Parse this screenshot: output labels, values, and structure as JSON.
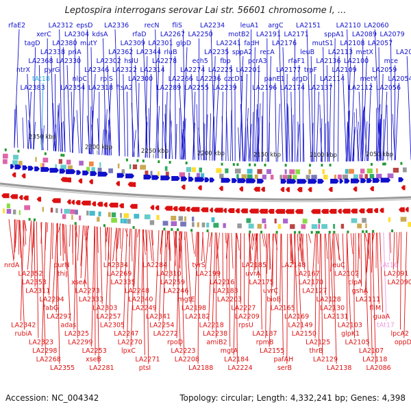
{
  "title": "Leptospira interrogans serovar Lai str. 56601 chromosome I, ...",
  "footer": {
    "accession": "Accession: NC_004342",
    "summary": "Topology: circular; Length: 4,332,241 bp; Genes: 4,398"
  },
  "colors": {
    "forward": "#1010cc",
    "reverse": "#dd1111",
    "rna_forward": "#22aadd",
    "rna_reverse": "#ee99dd",
    "axis": "#888888"
  },
  "kbp_ticks": [
    "2350 kbp",
    "2300 kbp",
    "2250 kbp",
    "2200 kbp",
    "2150 kbp",
    "2100 kbp",
    "2050 kbp"
  ],
  "forward_genes": [
    {
      "label": "rfaE2",
      "kind": "cds"
    },
    {
      "label": "ntrX",
      "kind": "cds"
    },
    {
      "label": "tagD",
      "kind": "cds"
    },
    {
      "label": "LA2383",
      "kind": "cds"
    },
    {
      "label": "LA2368",
      "kind": "cds"
    },
    {
      "label": "xerC",
      "kind": "cds"
    },
    {
      "label": "tAt18",
      "kind": "rna"
    },
    {
      "label": "LA2338",
      "kind": "cds"
    },
    {
      "label": "LA2312",
      "kind": "cds"
    },
    {
      "label": "pyrG",
      "kind": "cds"
    },
    {
      "label": "LA2380",
      "kind": "cds"
    },
    {
      "label": "LA2354",
      "kind": "cds"
    },
    {
      "label": "LA2330",
      "kind": "cds"
    },
    {
      "label": "LA2304",
      "kind": "cds"
    },
    {
      "label": "nlpC",
      "kind": "cds"
    },
    {
      "label": "priA",
      "kind": "cds"
    },
    {
      "label": "epsD",
      "kind": "cds"
    },
    {
      "label": "LA2346",
      "kind": "cds"
    },
    {
      "label": "mutY",
      "kind": "cds"
    },
    {
      "label": "LA2318",
      "kind": "cds"
    },
    {
      "label": "LA2302",
      "kind": "cds"
    },
    {
      "label": "kdsA",
      "kind": "cds"
    },
    {
      "label": "rplS",
      "kind": "cds"
    },
    {
      "label": "LA2362",
      "kind": "cds"
    },
    {
      "label": "LA2336",
      "kind": "cds"
    },
    {
      "label": "LA2322",
      "kind": "cds"
    },
    {
      "label": "LA2309",
      "kind": "cds"
    },
    {
      "label": "ftsA2",
      "kind": "cds"
    },
    {
      "label": "hslU",
      "kind": "cds"
    },
    {
      "label": "rfaD",
      "kind": "cds"
    },
    {
      "label": "LA2300",
      "kind": "cds"
    },
    {
      "label": "LA2344",
      "kind": "cds"
    },
    {
      "label": "recN",
      "kind": "cds"
    },
    {
      "label": "LA2314",
      "kind": "cds"
    },
    {
      "label": "LA2301",
      "kind": "cds"
    },
    {
      "label": "LA2289",
      "kind": "cds"
    },
    {
      "label": "LA2278",
      "kind": "cds"
    },
    {
      "label": "LA2267",
      "kind": "cds"
    },
    {
      "label": "LA2266",
      "kind": "cds"
    },
    {
      "label": "rluB",
      "kind": "cds"
    },
    {
      "label": "fliS",
      "kind": "cds"
    },
    {
      "label": "LA2274",
      "kind": "cds"
    },
    {
      "label": "glpD",
      "kind": "cds"
    },
    {
      "label": "LA2255",
      "kind": "cds"
    },
    {
      "label": "ech5",
      "kind": "cds"
    },
    {
      "label": "LA2250",
      "kind": "cds"
    },
    {
      "label": "LA2236",
      "kind": "cds"
    },
    {
      "label": "LA2235",
      "kind": "cds"
    },
    {
      "label": "LA2234",
      "kind": "cds"
    },
    {
      "label": "LA2225",
      "kind": "cds"
    },
    {
      "label": "LA2241",
      "kind": "cds"
    },
    {
      "label": "LA2239",
      "kind": "cds"
    },
    {
      "label": "fbp",
      "kind": "cds"
    },
    {
      "label": "motB2",
      "kind": "cds"
    },
    {
      "label": "czcD1",
      "kind": "cds"
    },
    {
      "label": "sppA2",
      "kind": "cds"
    },
    {
      "label": "leuA1",
      "kind": "cds"
    },
    {
      "label": "LA2201",
      "kind": "cds"
    },
    {
      "label": "fadH",
      "kind": "cds"
    },
    {
      "label": "LA2196",
      "kind": "cds"
    },
    {
      "label": "pcrA3",
      "kind": "cds"
    },
    {
      "label": "LA2191",
      "kind": "cds"
    },
    {
      "label": "panE1",
      "kind": "cds"
    },
    {
      "label": "recA",
      "kind": "cds"
    },
    {
      "label": "argC",
      "kind": "cds"
    },
    {
      "label": "LA2177",
      "kind": "cds"
    },
    {
      "label": "LA2176",
      "kind": "cds"
    },
    {
      "label": "LA2174",
      "kind": "cds"
    },
    {
      "label": "rfaF1",
      "kind": "cds"
    },
    {
      "label": "LA2171",
      "kind": "cds"
    },
    {
      "label": "argD",
      "kind": "cds"
    },
    {
      "label": "leuB",
      "kind": "cds"
    },
    {
      "label": "LA2151",
      "kind": "cds"
    },
    {
      "label": "trpF",
      "kind": "cds"
    },
    {
      "label": "mutS1",
      "kind": "cds"
    },
    {
      "label": "LA2137",
      "kind": "cds"
    },
    {
      "label": "LA2136",
      "kind": "cds"
    },
    {
      "label": "sppA1",
      "kind": "cds"
    },
    {
      "label": "LA2114",
      "kind": "cds"
    },
    {
      "label": "LA2113",
      "kind": "cds"
    },
    {
      "label": "LA2110",
      "kind": "cds"
    },
    {
      "label": "LA2109",
      "kind": "cds"
    },
    {
      "label": "LA2108",
      "kind": "cds"
    },
    {
      "label": "LA2112",
      "kind": "cds"
    },
    {
      "label": "LA2100",
      "kind": "cds"
    },
    {
      "label": "LA2089",
      "kind": "cds"
    },
    {
      "label": "metY",
      "kind": "cds"
    },
    {
      "label": "metX",
      "kind": "cds"
    },
    {
      "label": "LA2060",
      "kind": "cds"
    },
    {
      "label": "LA2059",
      "kind": "cds"
    },
    {
      "label": "LA2057",
      "kind": "cds"
    },
    {
      "label": "LA2056",
      "kind": "cds"
    },
    {
      "label": "mce",
      "kind": "cds"
    },
    {
      "label": "LA2079",
      "kind": "cds"
    },
    {
      "label": "LA2054",
      "kind": "cds"
    },
    {
      "label": "LA2070",
      "kind": "cds"
    }
  ],
  "reverse_genes": [
    {
      "label": "nrdA",
      "kind": "cds"
    },
    {
      "label": "LA2342",
      "kind": "cds"
    },
    {
      "label": "LA2352",
      "kind": "cds"
    },
    {
      "label": "rubiA",
      "kind": "cds"
    },
    {
      "label": "LA2353",
      "kind": "cds"
    },
    {
      "label": "LA2323",
      "kind": "cds"
    },
    {
      "label": "LA2311",
      "kind": "cds"
    },
    {
      "label": "LA2298",
      "kind": "cds"
    },
    {
      "label": "LA2294",
      "kind": "cds"
    },
    {
      "label": "LA2268",
      "kind": "cds"
    },
    {
      "label": "fabG",
      "kind": "cds"
    },
    {
      "label": "LA2355",
      "kind": "cds"
    },
    {
      "label": "LA2297",
      "kind": "cds"
    },
    {
      "label": "purN",
      "kind": "cds"
    },
    {
      "label": "adas",
      "kind": "cds"
    },
    {
      "label": "thiJ",
      "kind": "cds"
    },
    {
      "label": "LA2325",
      "kind": "cds"
    },
    {
      "label": "xseA",
      "kind": "cds"
    },
    {
      "label": "LA2299",
      "kind": "cds"
    },
    {
      "label": "LA2273",
      "kind": "cds"
    },
    {
      "label": "LA2253",
      "kind": "cds"
    },
    {
      "label": "LA2333",
      "kind": "cds"
    },
    {
      "label": "xseB",
      "kind": "cds"
    },
    {
      "label": "LA2303",
      "kind": "cds"
    },
    {
      "label": "LA2281",
      "kind": "cds"
    },
    {
      "label": "LA2257",
      "kind": "cds"
    },
    {
      "label": "LA2334",
      "kind": "cds"
    },
    {
      "label": "LA2305",
      "kind": "cds"
    },
    {
      "label": "LA2269",
      "kind": "cds"
    },
    {
      "label": "LA2247",
      "kind": "cds"
    },
    {
      "label": "LA2335",
      "kind": "cds"
    },
    {
      "label": "LA2270",
      "kind": "cds"
    },
    {
      "label": "LA2248",
      "kind": "cds"
    },
    {
      "label": "lpxC",
      "kind": "cds"
    },
    {
      "label": "LA2340",
      "kind": "cds"
    },
    {
      "label": "LA2271",
      "kind": "cds"
    },
    {
      "label": "LA2249",
      "kind": "cds"
    },
    {
      "label": "ptsI",
      "kind": "cds"
    },
    {
      "label": "LA2341",
      "kind": "cds"
    },
    {
      "label": "LA2284",
      "kind": "cds"
    },
    {
      "label": "LA2254",
      "kind": "cds"
    },
    {
      "label": "LA2310",
      "kind": "cds"
    },
    {
      "label": "LA2272",
      "kind": "cds"
    },
    {
      "label": "LA2259",
      "kind": "cds"
    },
    {
      "label": "rpoD",
      "kind": "cds"
    },
    {
      "label": "LA2246",
      "kind": "cds"
    },
    {
      "label": "LA2223",
      "kind": "cds"
    },
    {
      "label": "mgtE",
      "kind": "cds"
    },
    {
      "label": "LA2208",
      "kind": "cds"
    },
    {
      "label": "LA2198",
      "kind": "cds"
    },
    {
      "label": "LA2188",
      "kind": "cds"
    },
    {
      "label": "LA2182",
      "kind": "cds"
    },
    {
      "label": "tyrS",
      "kind": "cds"
    },
    {
      "label": "LA2218",
      "kind": "cds"
    },
    {
      "label": "LA2199",
      "kind": "cds"
    },
    {
      "label": "LA2238",
      "kind": "cds"
    },
    {
      "label": "LA2216",
      "kind": "cds"
    },
    {
      "label": "amiB2",
      "kind": "cds"
    },
    {
      "label": "LA2183",
      "kind": "cds"
    },
    {
      "label": "mgtA",
      "kind": "cds"
    },
    {
      "label": "LA2203",
      "kind": "cds"
    },
    {
      "label": "LA2184",
      "kind": "cds"
    },
    {
      "label": "LA2227",
      "kind": "cds"
    },
    {
      "label": "LA2224",
      "kind": "cds"
    },
    {
      "label": "LA2209",
      "kind": "cds"
    },
    {
      "label": "LA2185",
      "kind": "cds"
    },
    {
      "label": "rpsU",
      "kind": "cds"
    },
    {
      "label": "uvrA",
      "kind": "cds"
    },
    {
      "label": "LA2187",
      "kind": "cds"
    },
    {
      "label": "LA2175",
      "kind": "cds"
    },
    {
      "label": "rpmB",
      "kind": "cds"
    },
    {
      "label": "uvrC",
      "kind": "cds"
    },
    {
      "label": "LA2155",
      "kind": "cds"
    },
    {
      "label": "bioB",
      "kind": "cds"
    },
    {
      "label": "pafAH",
      "kind": "cds"
    },
    {
      "label": "LA2165",
      "kind": "cds"
    },
    {
      "label": "serB",
      "kind": "cds"
    },
    {
      "label": "LA2169",
      "kind": "cds"
    },
    {
      "label": "LA2148",
      "kind": "cds"
    },
    {
      "label": "LA2149",
      "kind": "cds"
    },
    {
      "label": "LA2167",
      "kind": "cds"
    },
    {
      "label": "LA2150",
      "kind": "cds"
    },
    {
      "label": "LA2170",
      "kind": "cds"
    },
    {
      "label": "LA2125",
      "kind": "cds"
    },
    {
      "label": "LA2127",
      "kind": "cds"
    },
    {
      "label": "thrB",
      "kind": "cds"
    },
    {
      "label": "LA2128",
      "kind": "cds"
    },
    {
      "label": "LA2129",
      "kind": "cds"
    },
    {
      "label": "LA2130",
      "kind": "cds"
    },
    {
      "label": "LA2138",
      "kind": "cds"
    },
    {
      "label": "LA2131",
      "kind": "cds"
    },
    {
      "label": "leuC",
      "kind": "cds"
    },
    {
      "label": "LA2103",
      "kind": "cds"
    },
    {
      "label": "LA2102",
      "kind": "cds"
    },
    {
      "label": "glpK1",
      "kind": "cds"
    },
    {
      "label": "clpA",
      "kind": "cds"
    },
    {
      "label": "LA2105",
      "kind": "cds"
    },
    {
      "label": "gshA",
      "kind": "cds"
    },
    {
      "label": "LA2107",
      "kind": "cds"
    },
    {
      "label": "LA2111",
      "kind": "cds"
    },
    {
      "label": "LA2118",
      "kind": "cds"
    },
    {
      "label": "fliM",
      "kind": "cds"
    },
    {
      "label": "LA2086",
      "kind": "cds"
    },
    {
      "label": "guaA",
      "kind": "cds"
    },
    {
      "label": "tAt16",
      "kind": "rna"
    },
    {
      "label": "tAt17",
      "kind": "rna"
    },
    {
      "label": "LA2091",
      "kind": "cds"
    },
    {
      "label": "lpcA2",
      "kind": "cds"
    },
    {
      "label": "LA2090",
      "kind": "cds"
    },
    {
      "label": "oppD",
      "kind": "cds"
    }
  ]
}
